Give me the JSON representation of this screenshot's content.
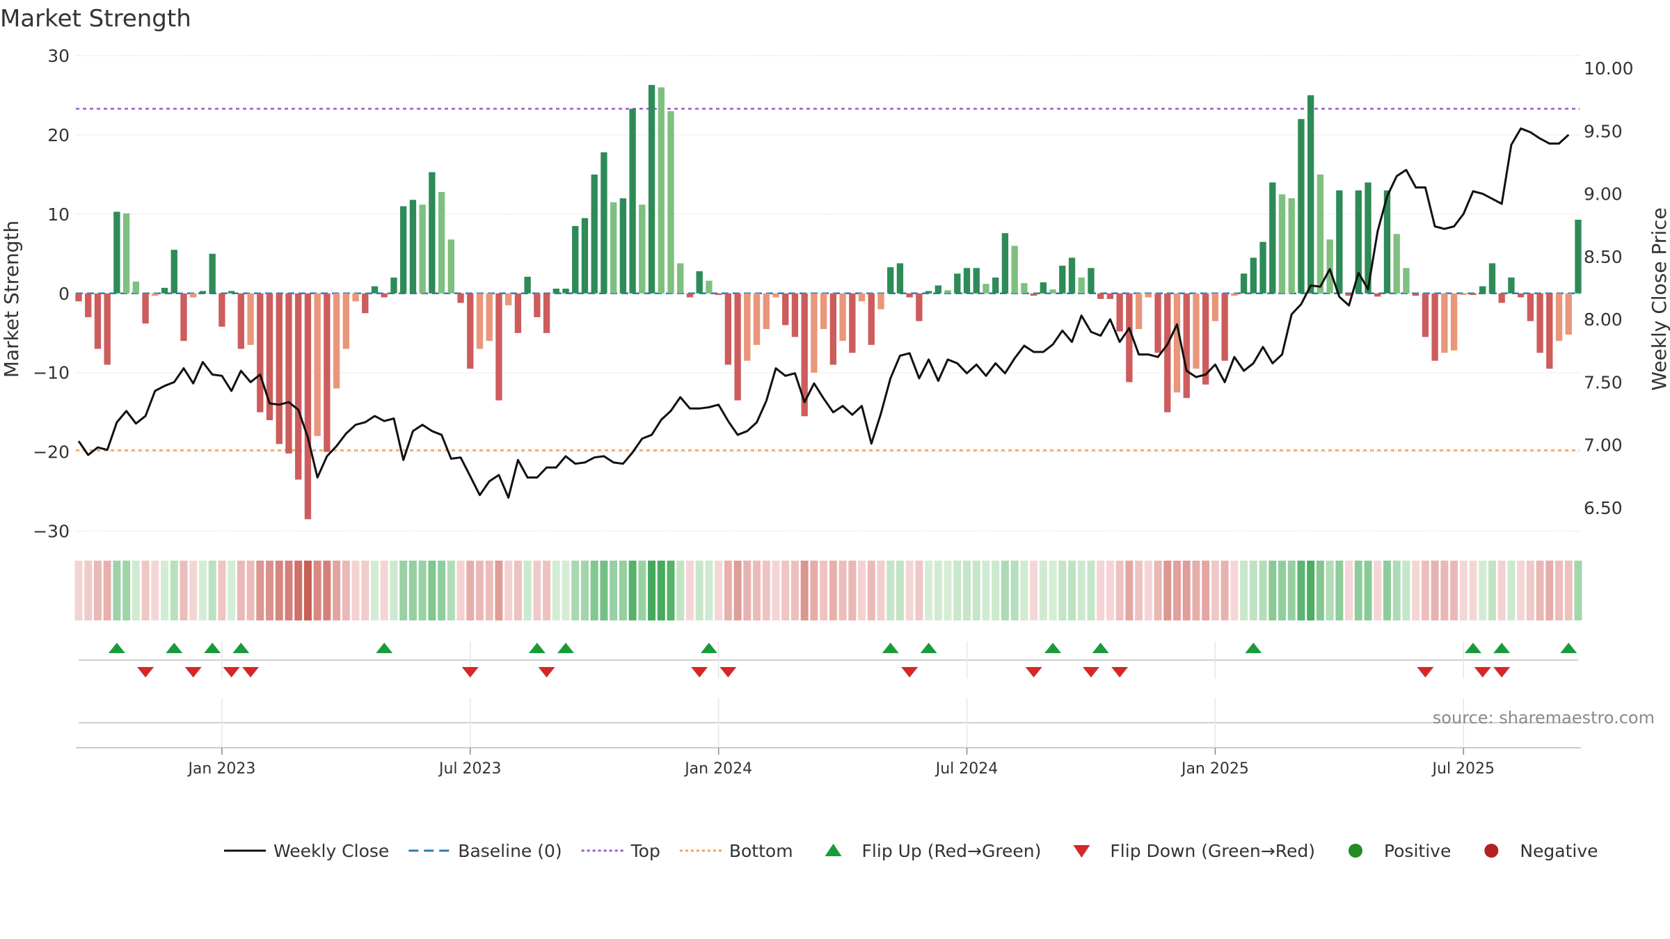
{
  "chart_data": {
    "type": "bar",
    "title": "Market Strength",
    "ylabel": "Market Strength",
    "y2label": "Weekly Close Price",
    "ylim": [
      -31,
      30
    ],
    "y2lim": [
      6.25,
      10.1
    ],
    "yticks": [
      30,
      20,
      10,
      0,
      -10,
      -20,
      -30
    ],
    "ytick_labels": [
      "30",
      "20",
      "10",
      "0",
      "−10",
      "−20",
      "−30"
    ],
    "y2ticks": [
      10.0,
      9.5,
      9.0,
      8.5,
      8.0,
      7.5,
      7.0,
      6.5
    ],
    "y2tick_labels": [
      "10.00",
      "9.50",
      "9.00",
      "8.50",
      "8.00",
      "7.50",
      "7.00",
      "6.50"
    ],
    "xticks": [
      {
        "week": 15,
        "label": "Jan 2023"
      },
      {
        "week": 41,
        "label": "Jul 2023"
      },
      {
        "week": 67,
        "label": "Jan 2024"
      },
      {
        "week": 93,
        "label": "Jul 2024"
      },
      {
        "week": 119,
        "label": "Jan 2025"
      },
      {
        "week": 145,
        "label": "Jul 2025"
      }
    ],
    "grid": true,
    "legend_position": "bottom",
    "top_line": 23.3,
    "bottom_line": -19.8,
    "baseline": 0,
    "strength": [
      -1,
      -3,
      -7,
      -9,
      10.3,
      10.1,
      1.5,
      -3.8,
      -0.3,
      0.7,
      5.5,
      -6,
      -0.5,
      0.3,
      5,
      -4.2,
      0.3,
      -7,
      -6.5,
      -15,
      -16,
      -19,
      -20.2,
      -23.5,
      -28.5,
      -18,
      -20,
      -12,
      -7,
      -1,
      -2.5,
      0.9,
      -0.5,
      2,
      11,
      11.8,
      11.2,
      15.3,
      12.8,
      6.8,
      -1.2,
      -9.5,
      -7,
      -6,
      -13.5,
      -1.5,
      -5,
      2.1,
      -3,
      -5,
      0.6,
      0.6,
      8.5,
      9.5,
      15,
      17.8,
      11.5,
      12,
      23.3,
      11.2,
      26.3,
      26,
      23,
      3.8,
      -0.5,
      2.8,
      1.6,
      -0.2,
      -9,
      -13.5,
      -8.5,
      -6.5,
      -4.5,
      -0.5,
      -4,
      -5.5,
      -15.5,
      -10,
      -4.5,
      -9,
      -6,
      -7.5,
      -1,
      -6.5,
      -2,
      3.3,
      3.8,
      -0.5,
      -3.5,
      0.3,
      1,
      0.4,
      2.5,
      3.2,
      3.2,
      1.2,
      2,
      7.6,
      6,
      1.3,
      -0.3,
      1.4,
      0.5,
      3.5,
      4.5,
      2,
      3.2,
      -0.7,
      -0.7,
      -4.8,
      -11.2,
      -4.5,
      -0.5,
      -7.5,
      -15,
      -12.5,
      -13.2,
      -9.5,
      -11.5,
      -3.5,
      -8.5,
      -0.3,
      2.5,
      4.5,
      6.5,
      14,
      12.5,
      12,
      22,
      25,
      15,
      6.8,
      13,
      -0.3,
      13,
      14,
      -0.4,
      13,
      7.5,
      3.2,
      -0.3,
      -5.5,
      -8.5,
      -7.5,
      -7.2,
      -0.2,
      -0.2,
      0.9,
      3.8,
      -1.2,
      2,
      -0.5,
      -3.5,
      -7.5,
      -9.5,
      -6,
      -5.2,
      9.3
    ],
    "weekly_close": [
      7.03,
      6.92,
      6.98,
      6.96,
      7.18,
      7.27,
      7.17,
      7.23,
      7.43,
      7.47,
      7.5,
      7.61,
      7.49,
      7.66,
      7.56,
      7.55,
      7.43,
      7.59,
      7.5,
      7.56,
      7.33,
      7.32,
      7.34,
      7.28,
      7.06,
      6.74,
      6.91,
      6.99,
      7.09,
      7.16,
      7.18,
      7.23,
      7.19,
      7.21,
      6.88,
      7.11,
      7.16,
      7.11,
      7.08,
      6.89,
      6.9,
      6.75,
      6.6,
      6.71,
      6.76,
      6.58,
      6.88,
      6.74,
      6.74,
      6.82,
      6.82,
      6.91,
      6.85,
      6.86,
      6.9,
      6.91,
      6.86,
      6.85,
      6.94,
      7.05,
      7.08,
      7.2,
      7.27,
      7.38,
      7.29,
      7.29,
      7.3,
      7.32,
      7.19,
      7.08,
      7.11,
      7.18,
      7.35,
      7.61,
      7.55,
      7.57,
      7.34,
      7.49,
      7.37,
      7.26,
      7.31,
      7.24,
      7.31,
      7.01,
      7.25,
      7.53,
      7.71,
      7.73,
      7.53,
      7.68,
      7.51,
      7.68,
      7.65,
      7.57,
      7.64,
      7.55,
      7.65,
      7.57,
      7.69,
      7.79,
      7.74,
      7.74,
      7.8,
      7.91,
      7.82,
      8.03,
      7.9,
      7.87,
      8.0,
      7.82,
      7.93,
      7.72,
      7.72,
      7.7,
      7.8,
      7.96,
      7.59,
      7.54,
      7.56,
      7.64,
      7.5,
      7.7,
      7.59,
      7.65,
      7.78,
      7.65,
      7.72,
      8.04,
      8.12,
      8.27,
      8.26,
      8.4,
      8.18,
      8.11,
      8.37,
      8.24,
      8.7,
      8.98,
      9.14,
      9.19,
      9.05,
      9.05,
      8.74,
      8.72,
      8.74,
      8.84,
      9.02,
      9.0,
      8.96,
      8.92,
      9.39,
      9.52,
      9.49,
      9.44,
      9.4,
      9.4,
      9.47
    ],
    "flip_up_weeks": [
      4,
      10,
      14,
      17,
      32,
      48,
      51,
      66,
      85,
      89,
      102,
      107,
      123,
      146,
      149,
      156
    ],
    "flip_down_weeks": [
      7,
      12,
      16,
      18,
      41,
      49,
      65,
      68,
      87,
      100,
      106,
      109,
      141,
      147,
      149
    ],
    "source": "source: sharemaestro.com",
    "legend": [
      {
        "label": "Weekly Close",
        "marker": "line-solid",
        "color": "#111111"
      },
      {
        "label": "Baseline (0)",
        "marker": "line-dashed",
        "color": "#2b7bb9"
      },
      {
        "label": "Top",
        "marker": "line-dotted",
        "color": "#9a5bd6"
      },
      {
        "label": "Bottom",
        "marker": "line-dotted",
        "color": "#f0a15a"
      },
      {
        "label": "Flip Up (Red→Green)",
        "marker": "triangle-up",
        "color": "#1a9b3a"
      },
      {
        "label": "Flip Down (Green→Red)",
        "marker": "triangle-down",
        "color": "#d62728"
      },
      {
        "label": "Positive",
        "marker": "circle",
        "color": "#228b22"
      },
      {
        "label": "Negative",
        "marker": "circle",
        "color": "#b22222"
      }
    ],
    "colors": {
      "pos_strong": "#2e8b57",
      "pos_light": "#7fbf7f",
      "neg_strong": "#cd5c5c",
      "neg_light": "#e9967a",
      "close_line": "#111111",
      "baseline": "#2b7bb9",
      "top": "#9a5bd6",
      "bottom": "#f0a15a",
      "flip_up": "#1a9b3a",
      "flip_down": "#d62728"
    }
  }
}
